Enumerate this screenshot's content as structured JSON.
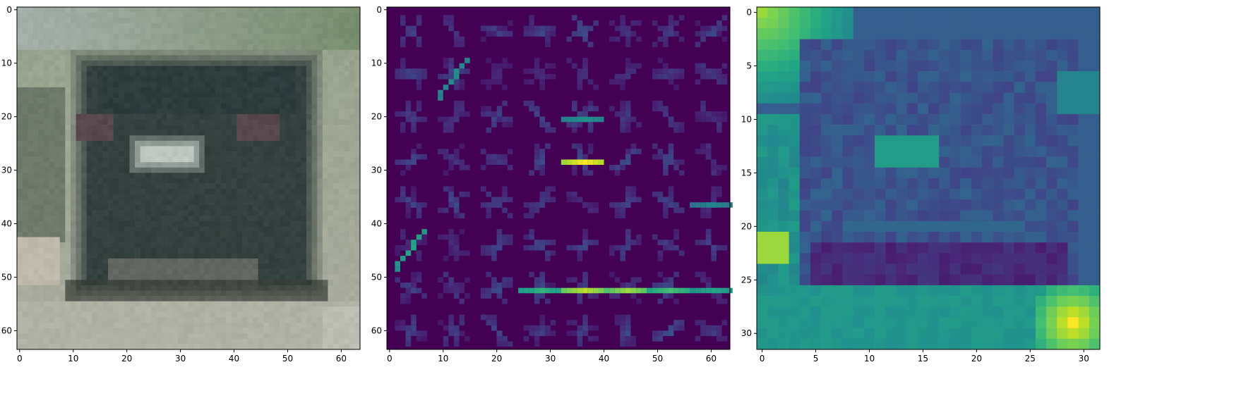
{
  "chart_data": [
    {
      "type": "heatmap",
      "subtype": "image",
      "description_of_content": "",
      "xlim": [
        -0.5,
        63.5
      ],
      "ylim": [
        63.5,
        -0.5
      ],
      "x_ticks": [
        0,
        10,
        20,
        30,
        40,
        50,
        60
      ],
      "y_ticks": [
        0,
        10,
        20,
        30,
        40,
        50,
        60
      ],
      "grid": false,
      "colors": {
        "background_bottom": "#b7b8ac",
        "car_body": "#36443f",
        "plate": "#b9c2b8",
        "foliage": "#7c8a6b",
        "shadow": "#2c3229"
      }
    },
    {
      "type": "heatmap",
      "subtype": "hog-visualization",
      "colormap": "viridis",
      "xlim": [
        -0.5,
        63.5
      ],
      "ylim": [
        63.5,
        -0.5
      ],
      "x_ticks": [
        0,
        10,
        20,
        30,
        40,
        50,
        60
      ],
      "y_ticks": [
        0,
        10,
        20,
        30,
        40,
        50,
        60
      ],
      "grid": false,
      "cells": 8,
      "strokes": [
        {
          "x1": 57,
          "y1": 6,
          "x2": 63,
          "y2": 6,
          "v": 0.55
        }
      ]
    },
    {
      "type": "heatmap",
      "subtype": "feature-channel",
      "colormap": "viridis",
      "xlim": [
        -0.5,
        31.5
      ],
      "ylim": [
        31.5,
        -0.5
      ],
      "x_ticks": [
        0,
        5,
        10,
        15,
        20,
        25,
        30
      ],
      "y_ticks": [
        0,
        5,
        10,
        15,
        20,
        25,
        30
      ],
      "grid": false
    }
  ]
}
